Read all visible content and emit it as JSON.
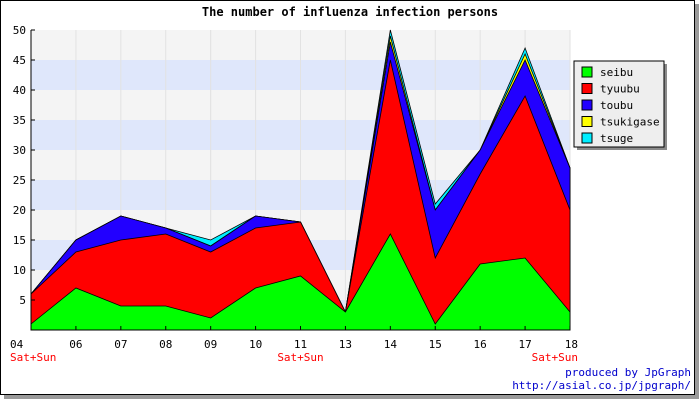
{
  "chart_data": {
    "type": "area",
    "stacked": true,
    "title": "The number of influenza infection persons",
    "categories": [
      "04",
      "06",
      "07",
      "08",
      "09",
      "10",
      "11",
      "13",
      "14",
      "15",
      "16",
      "17",
      "18"
    ],
    "weekend_label": "Sat+Sun",
    "weekend_categories": [
      "04",
      "11",
      "18"
    ],
    "ylim": [
      0,
      50
    ],
    "yticks": [
      5,
      10,
      15,
      20,
      25,
      30,
      35,
      40,
      45,
      50
    ],
    "grid": true,
    "legend_position": "right",
    "series": [
      {
        "name": "seibu",
        "color": "#00ff00",
        "values": [
          1,
          7,
          4,
          4,
          2,
          7,
          9,
          3,
          16,
          1,
          11,
          12,
          3
        ]
      },
      {
        "name": "tyuubu",
        "color": "#ff0000",
        "values": [
          5,
          6,
          11,
          12,
          11,
          10,
          9,
          0,
          29,
          11,
          15,
          27,
          17
        ]
      },
      {
        "name": "toubu",
        "color": "#2200ff",
        "values": [
          0,
          2,
          4,
          1,
          1,
          2,
          0,
          0,
          3,
          8,
          4,
          6,
          7
        ]
      },
      {
        "name": "tsukigase",
        "color": "#ffff00",
        "values": [
          0,
          0,
          0,
          0,
          0,
          0,
          0,
          0,
          1,
          0,
          0,
          1,
          0
        ]
      },
      {
        "name": "tsuge",
        "color": "#00eeff",
        "values": [
          0,
          0,
          0,
          0,
          1,
          0,
          0,
          0,
          1,
          1,
          0,
          1,
          0
        ]
      }
    ]
  },
  "credits": {
    "line1": "produced by JpGraph",
    "line2": "http://asial.co.jp/jpgraph/"
  }
}
